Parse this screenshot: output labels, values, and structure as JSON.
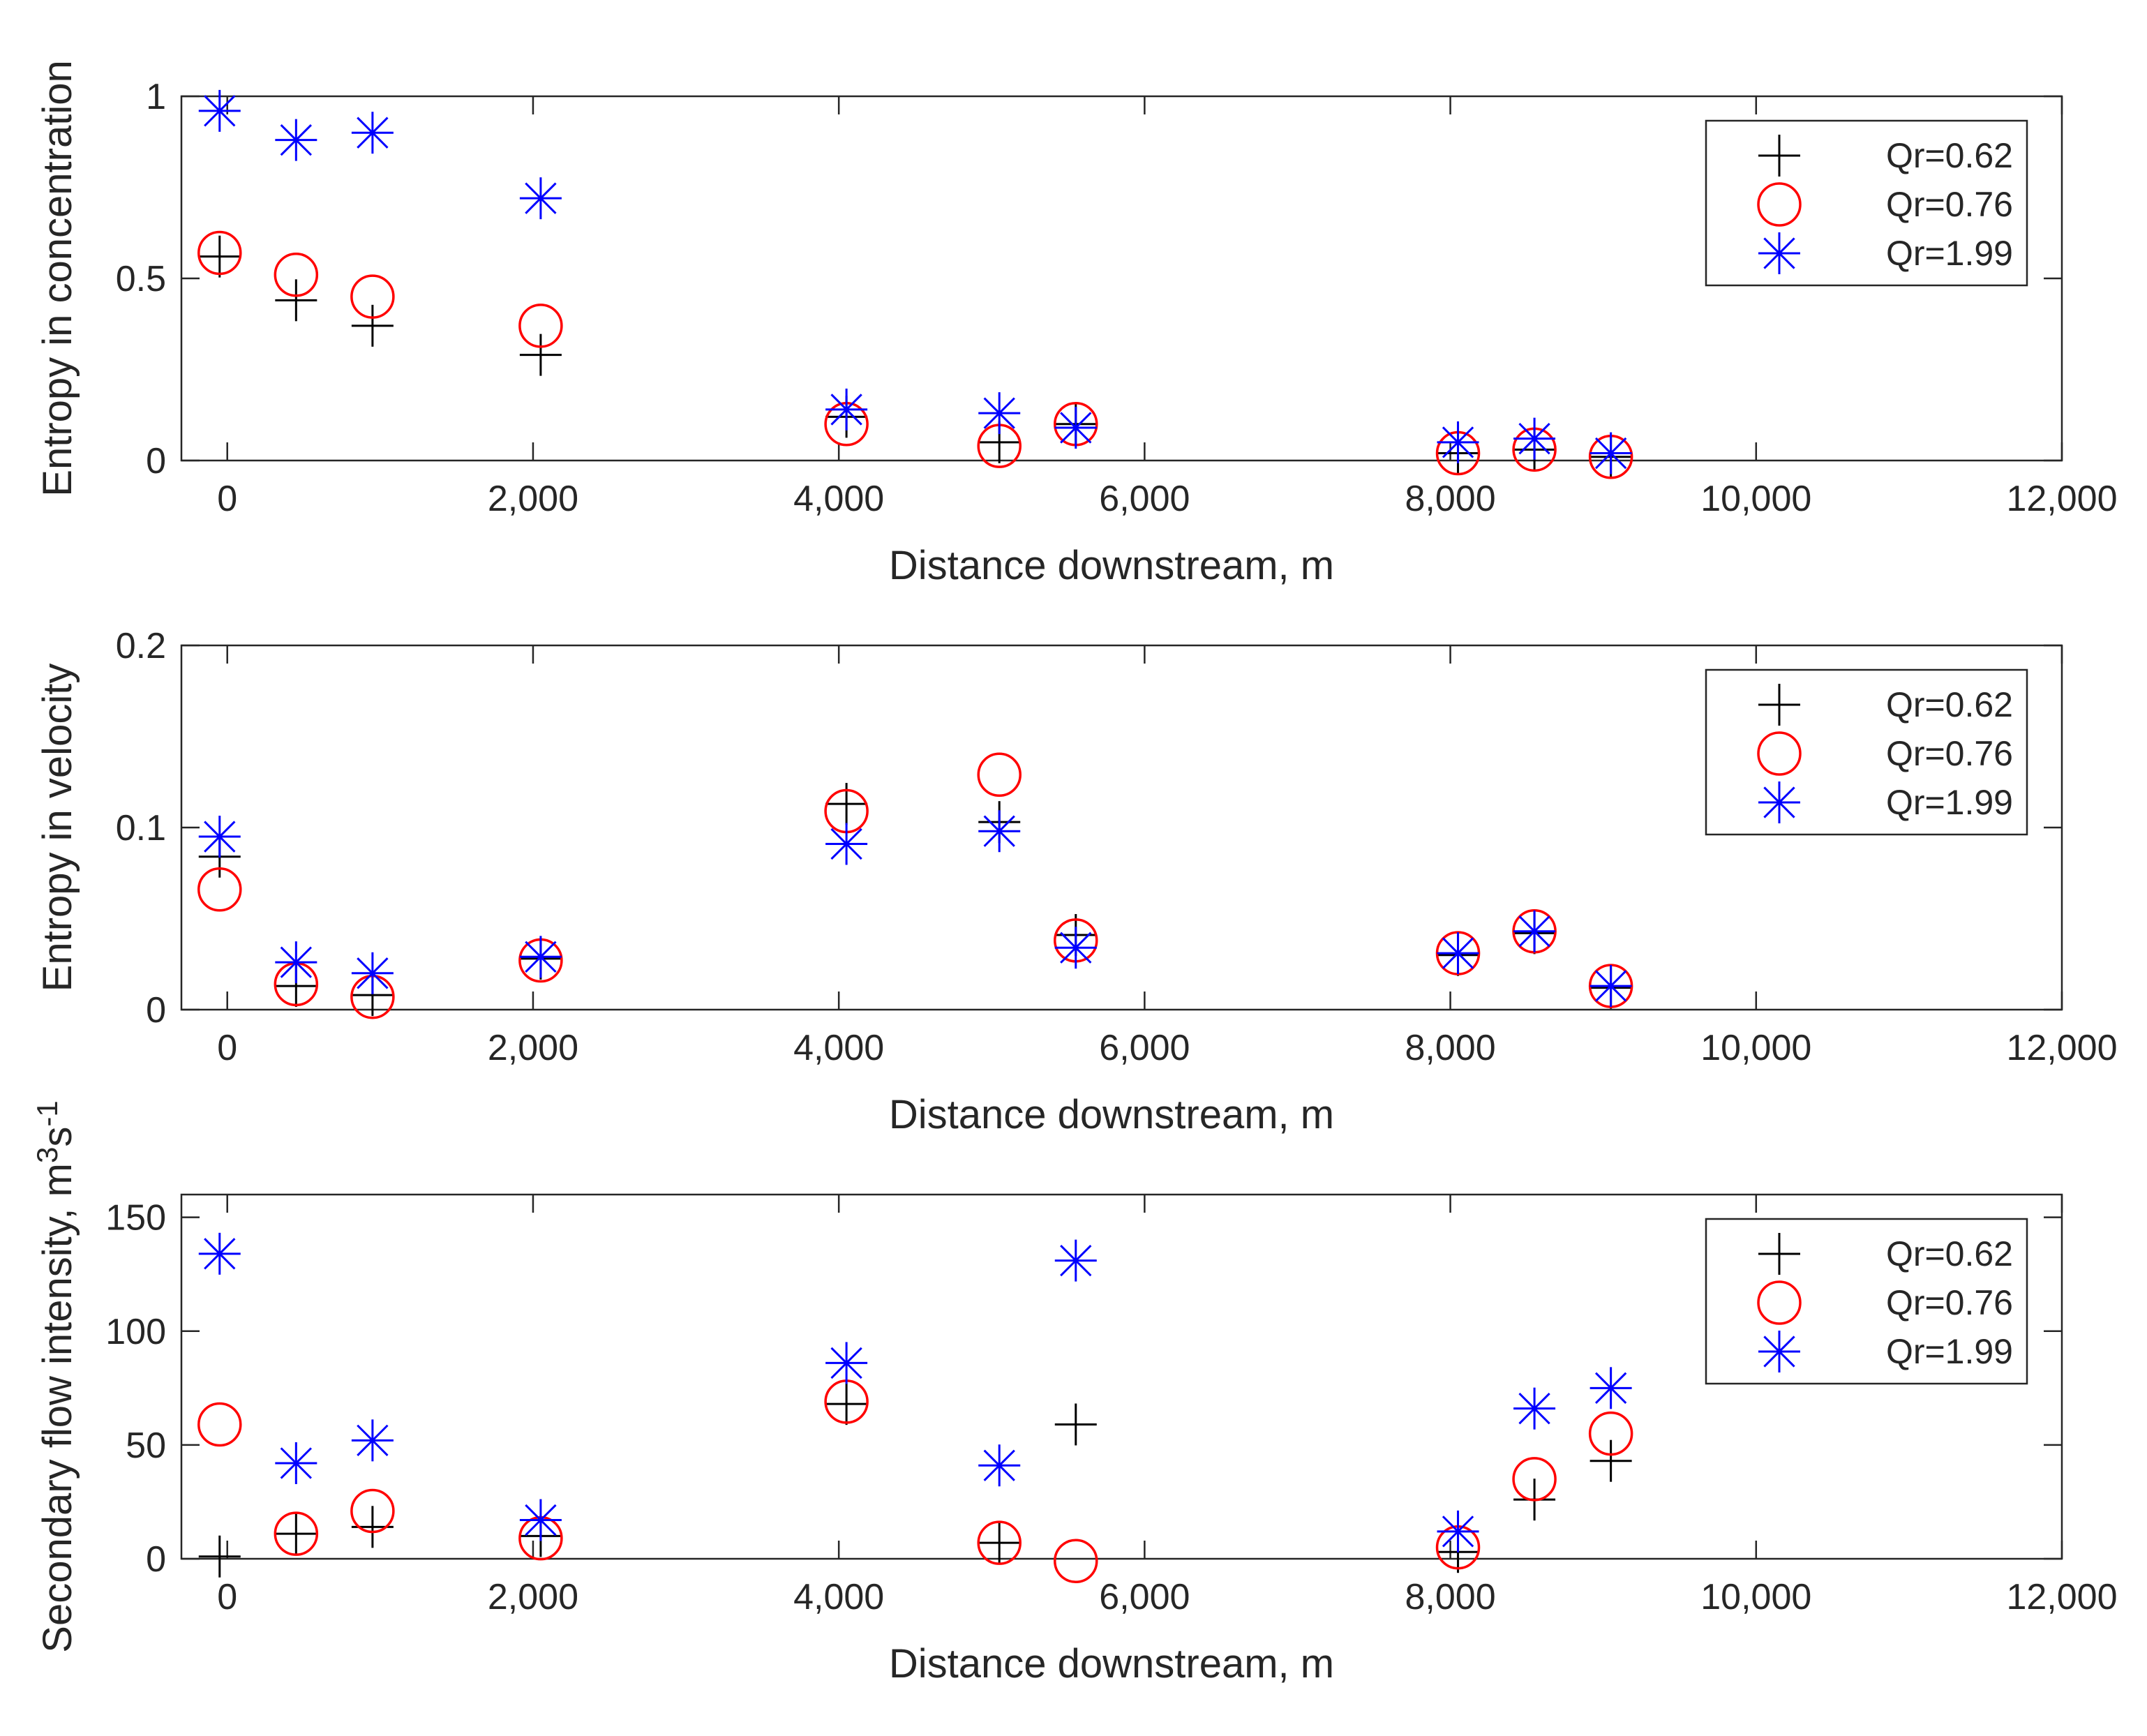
{
  "chart_data": [
    {
      "type": "scatter",
      "title": "",
      "xlabel": "Distance downstream, m",
      "ylabel": "Entropy in concentration",
      "xlim": [
        -300,
        12000
      ],
      "ylim": [
        0,
        1
      ],
      "grid": false,
      "legend_position": "top-right",
      "xticks": [
        0,
        2000,
        4000,
        6000,
        8000,
        10000,
        12000
      ],
      "xtick_labels": [
        "0",
        "2,000",
        "4,000",
        "6,000",
        "8,000",
        "10,000",
        "12,000"
      ],
      "yticks": [
        0,
        0.5,
        1
      ],
      "ytick_labels": [
        "0",
        "0.5",
        "1"
      ],
      "series": [
        {
          "name": "Qr=0.62",
          "marker": "plus",
          "color": "#000000",
          "x": [
            -50,
            450,
            950,
            2050,
            4050,
            5050,
            5550,
            8050,
            8550,
            9050
          ],
          "y": [
            0.56,
            0.44,
            0.37,
            0.29,
            0.12,
            0.05,
            0.1,
            0.02,
            0.03,
            0.01
          ]
        },
        {
          "name": "Qr=0.76",
          "marker": "circle",
          "color": "#ff0000",
          "x": [
            -50,
            450,
            950,
            2050,
            4050,
            5050,
            5550,
            8050,
            8550,
            9050
          ],
          "y": [
            0.57,
            0.51,
            0.45,
            0.37,
            0.1,
            0.04,
            0.1,
            0.02,
            0.03,
            0.01
          ]
        },
        {
          "name": "Qr=1.99",
          "marker": "asterisk",
          "color": "#0000ff",
          "x": [
            -50,
            450,
            950,
            2050,
            4050,
            5050,
            5550,
            8050,
            8550,
            9050
          ],
          "y": [
            0.96,
            0.88,
            0.9,
            0.72,
            0.14,
            0.13,
            0.09,
            0.05,
            0.06,
            0.02
          ]
        }
      ]
    },
    {
      "type": "scatter",
      "title": "",
      "xlabel": "Distance downstream, m",
      "ylabel": "Entropy in velocity",
      "xlim": [
        -300,
        12000
      ],
      "ylim": [
        0,
        0.2
      ],
      "grid": false,
      "legend_position": "top-right",
      "xticks": [
        0,
        2000,
        4000,
        6000,
        8000,
        10000,
        12000
      ],
      "xtick_labels": [
        "0",
        "2,000",
        "4,000",
        "6,000",
        "8,000",
        "10,000",
        "12,000"
      ],
      "yticks": [
        0,
        0.1,
        0.2
      ],
      "ytick_labels": [
        "0",
        "0.1",
        "0.2"
      ],
      "series": [
        {
          "name": "Qr=0.62",
          "marker": "plus",
          "color": "#000000",
          "x": [
            -50,
            450,
            950,
            2050,
            4050,
            5050,
            5550,
            8050,
            8550,
            9050
          ],
          "y": [
            0.084,
            0.013,
            0.008,
            0.028,
            0.113,
            0.103,
            0.041,
            0.03,
            0.042,
            0.012
          ]
        },
        {
          "name": "Qr=0.76",
          "marker": "circle",
          "color": "#ff0000",
          "x": [
            -50,
            450,
            950,
            2050,
            4050,
            5050,
            5550,
            8050,
            8550,
            9050
          ],
          "y": [
            0.066,
            0.014,
            0.007,
            0.027,
            0.109,
            0.129,
            0.038,
            0.031,
            0.043,
            0.013
          ]
        },
        {
          "name": "Qr=1.99",
          "marker": "asterisk",
          "color": "#0000ff",
          "x": [
            -50,
            450,
            950,
            2050,
            4050,
            5050,
            5550,
            8050,
            8550,
            9050
          ],
          "y": [
            0.095,
            0.026,
            0.02,
            0.029,
            0.091,
            0.098,
            0.034,
            0.031,
            0.043,
            0.013
          ]
        }
      ]
    },
    {
      "type": "scatter",
      "title": "",
      "xlabel": "Distance downstream, m",
      "ylabel_prefix": "Secondary flow intensity, m",
      "ylabel_sup1": "3",
      "ylabel_mid": "s",
      "ylabel_sup2": "-1",
      "xlim": [
        -300,
        12000
      ],
      "ylim": [
        0,
        160
      ],
      "grid": false,
      "legend_position": "top-right",
      "xticks": [
        0,
        2000,
        4000,
        6000,
        8000,
        10000,
        12000
      ],
      "xtick_labels": [
        "0",
        "2,000",
        "4,000",
        "6,000",
        "8,000",
        "10,000",
        "12,000"
      ],
      "yticks": [
        0,
        50,
        100,
        150
      ],
      "ytick_labels": [
        "0",
        "50",
        "100",
        "150"
      ],
      "series": [
        {
          "name": "Qr=0.62",
          "marker": "plus",
          "color": "#000000",
          "x": [
            -50,
            450,
            950,
            2050,
            4050,
            5050,
            5550,
            8050,
            8550,
            9050
          ],
          "y": [
            1,
            11,
            14,
            10,
            68,
            7,
            59,
            3,
            26,
            43
          ]
        },
        {
          "name": "Qr=0.76",
          "marker": "circle",
          "color": "#ff0000",
          "x": [
            -50,
            450,
            950,
            2050,
            4050,
            5050,
            5550,
            8050,
            8550,
            9050
          ],
          "y": [
            59,
            11,
            21,
            9,
            69,
            7,
            -1,
            5,
            35,
            55
          ]
        },
        {
          "name": "Qr=1.99",
          "marker": "asterisk",
          "color": "#0000ff",
          "x": [
            -50,
            450,
            950,
            2050,
            4050,
            5050,
            5550,
            8050,
            8550,
            9050
          ],
          "y": [
            134,
            42,
            52,
            17,
            86,
            41,
            131,
            12,
            66,
            75
          ]
        }
      ]
    }
  ]
}
